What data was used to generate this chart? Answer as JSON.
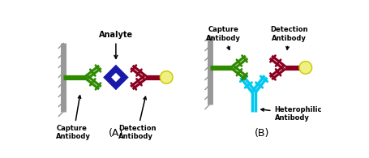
{
  "bg_color": "#ffffff",
  "green": "#2e8b00",
  "dark_red": "#8B0020",
  "blue": "#1a1aaa",
  "cyan": "#00c8f0",
  "yellow_fill": "#f0f080",
  "yellow_edge": "#c8c800",
  "gray": "#989898",
  "label_A": "(A)",
  "label_B": "(B)",
  "text_analyte": "Analyte",
  "text_capture_A": "Capture\nAntibody",
  "text_detection_A": "Detection\nAntibody",
  "text_capture_B": "Capture\nAntibody",
  "text_detection_B": "Detection\nAntibody",
  "text_heterophilic": "Heterophilic\nAntibody"
}
